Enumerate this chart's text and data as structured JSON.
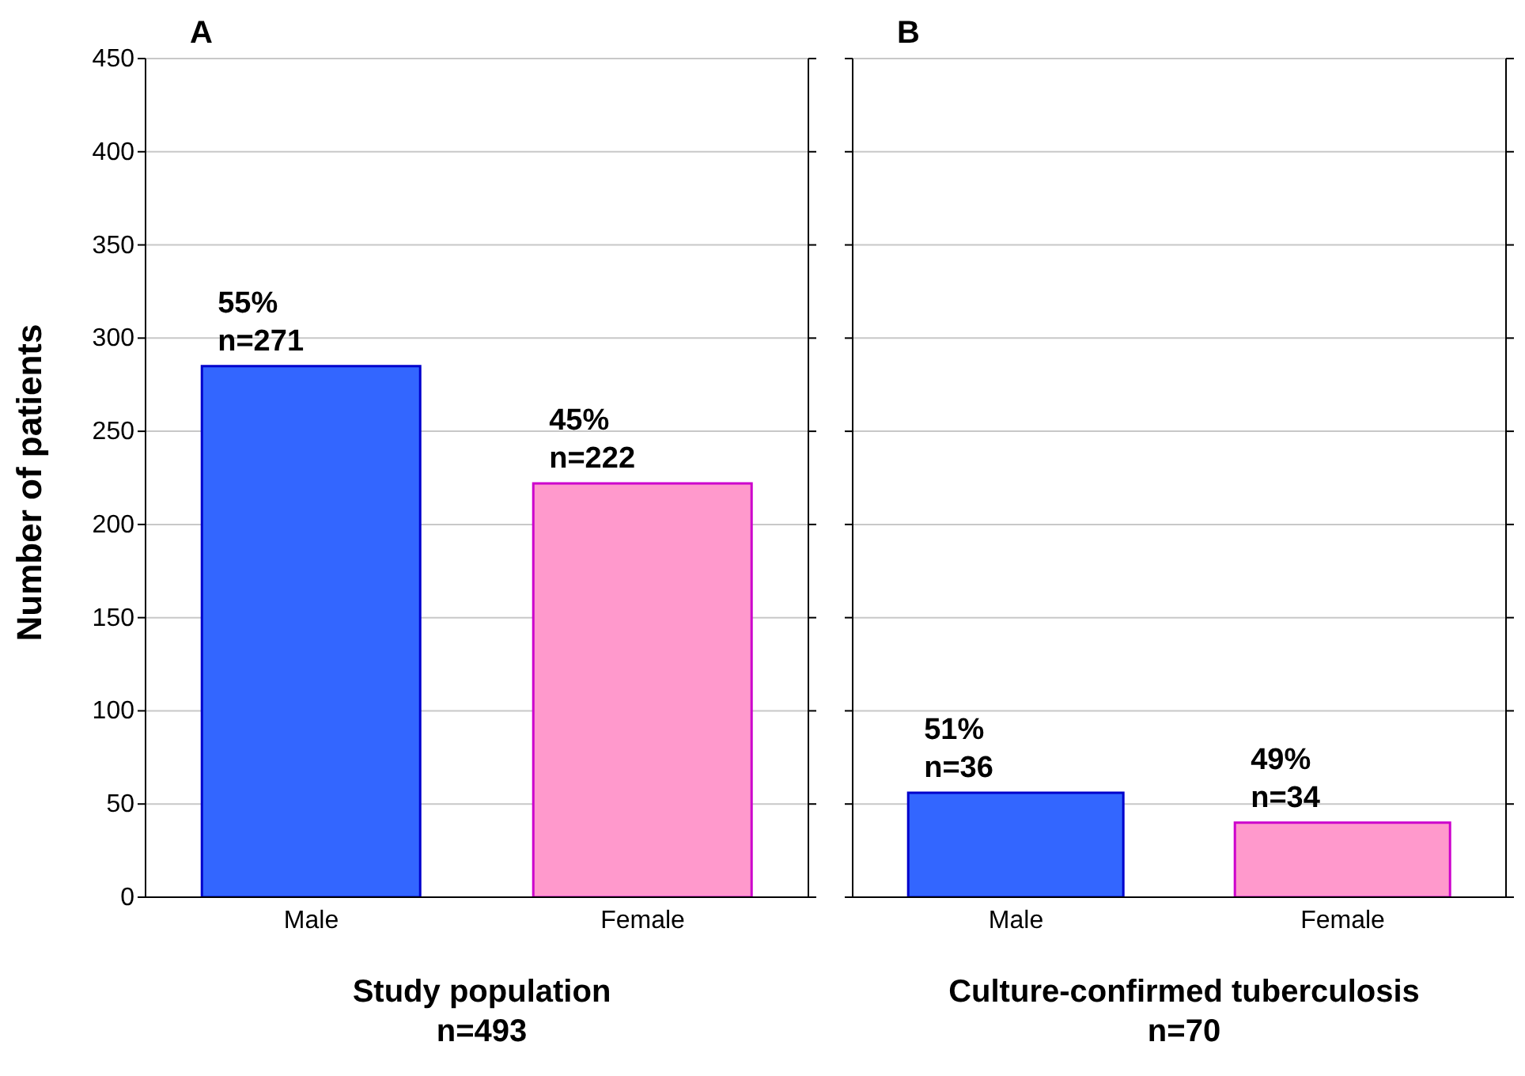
{
  "chart_data": [
    {
      "type": "bar",
      "title": "A",
      "xlabel": "Study population\nn=493",
      "ylabel": "Number of patients",
      "categories": [
        "Male",
        "Female"
      ],
      "values": [
        285,
        222
      ],
      "colors": [
        "#3366ff",
        "#ff99cc"
      ],
      "annotations": [
        {
          "text": "55%\nn=271",
          "x": "Male",
          "y": 285
        },
        {
          "text": "45%\nn=222",
          "x": "Female",
          "y": 222
        }
      ],
      "ylim": [
        0,
        450
      ],
      "yticks": [
        0,
        50,
        100,
        150,
        200,
        250,
        300,
        350,
        400,
        450
      ],
      "grid": "y"
    },
    {
      "type": "bar",
      "title": "B",
      "xlabel": "Culture-confirmed tuberculosis\nn=70",
      "categories": [
        "Male",
        "Female"
      ],
      "values": [
        56,
        40
      ],
      "colors": [
        "#3366ff",
        "#ff99cc"
      ],
      "annotations": [
        {
          "text": "51%\nn=36",
          "x": "Male",
          "y": 56
        },
        {
          "text": "49%\nn=34",
          "x": "Female",
          "y": 40
        }
      ],
      "ylim": [
        0,
        450
      ],
      "yticks": [
        0,
        50,
        100,
        150,
        200,
        250,
        300,
        350,
        400,
        450
      ],
      "grid": "y",
      "tick_labels": "x"
    }
  ]
}
